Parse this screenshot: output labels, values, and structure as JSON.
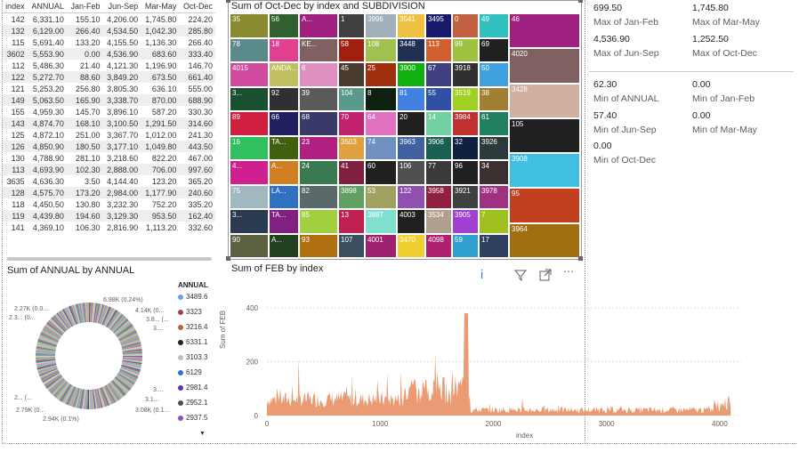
{
  "table": {
    "headers": [
      "index",
      "ANNUAL",
      "Jan-Feb",
      "Jun-Sep",
      "Mar-May",
      "Oct-Dec"
    ],
    "rows": [
      [
        "142",
        "6,331.10",
        "155.10",
        "4,206.00",
        "1,745.80",
        "224.20"
      ],
      [
        "132",
        "6,129.00",
        "266.40",
        "4,534.50",
        "1,042.30",
        "285.80"
      ],
      [
        "115",
        "5,691.40",
        "133.20",
        "4,155.50",
        "1,136.30",
        "266.40"
      ],
      [
        "3602",
        "5,553.90",
        "0.00",
        "4,536.90",
        "683.60",
        "333.40"
      ],
      [
        "112",
        "5,486.30",
        "21.40",
        "4,121.30",
        "1,196.90",
        "146.70"
      ],
      [
        "122",
        "5,272.70",
        "88.60",
        "3,849.20",
        "673.50",
        "661.40"
      ],
      [
        "121",
        "5,253.20",
        "256.80",
        "3,805.30",
        "636.10",
        "555.00"
      ],
      [
        "149",
        "5,063.50",
        "165.90",
        "3,338.70",
        "870.00",
        "688.90"
      ],
      [
        "155",
        "4,959.30",
        "145.70",
        "3,896.10",
        "587.20",
        "330.30"
      ],
      [
        "143",
        "4,874.70",
        "168.10",
        "3,100.50",
        "1,291.50",
        "314.60"
      ],
      [
        "125",
        "4,872.10",
        "251.00",
        "3,367.70",
        "1,012.00",
        "241.30"
      ],
      [
        "126",
        "4,850.90",
        "180.50",
        "3,177.10",
        "1,049.80",
        "443.50"
      ],
      [
        "130",
        "4,788.90",
        "281.10",
        "3,218.60",
        "822.20",
        "467.00"
      ],
      [
        "113",
        "4,693.90",
        "102.30",
        "2,888.00",
        "706.00",
        "997.60"
      ],
      [
        "3635",
        "4,636.30",
        "3.50",
        "4,144.40",
        "123.20",
        "365.20"
      ],
      [
        "128",
        "4,575.70",
        "173.20",
        "2,984.00",
        "1,177.90",
        "240.60"
      ],
      [
        "118",
        "4,450.50",
        "130.80",
        "3,232.30",
        "752.20",
        "335.20"
      ],
      [
        "119",
        "4,439.80",
        "194.60",
        "3,129.30",
        "953.50",
        "162.40"
      ],
      [
        "141",
        "4,369.10",
        "106.30",
        "2,816.90",
        "1,113.20",
        "332.60"
      ]
    ]
  },
  "treemap": {
    "title": "Sum of Oct-Dec by index and SUBDIVISION",
    "cells": [
      [
        "35",
        "#8a8a30"
      ],
      [
        "78",
        "#5b8a8a"
      ],
      [
        "4015",
        "#d04aa0"
      ],
      [
        "3...",
        "#1a5030"
      ],
      [
        "89",
        "#d02040"
      ],
      [
        "16",
        "#30c060"
      ],
      [
        "4...",
        "#d02090"
      ],
      [
        "75",
        "#a0b8c0"
      ],
      [
        "3...",
        "#2a3a50"
      ],
      [
        "90",
        "#5a6040"
      ],
      [
        "56",
        "#306030"
      ],
      [
        "18",
        "#e04090"
      ],
      [
        "ANDA...",
        "#c0c060"
      ],
      [
        "92",
        "#303030"
      ],
      [
        "66",
        "#202060"
      ],
      [
        "TA...",
        "#406010"
      ],
      [
        "A...",
        "#d08020"
      ],
      [
        "LA...",
        "#3070c0"
      ],
      [
        "TA...",
        "#802080"
      ],
      [
        "A...",
        "#204020"
      ],
      [
        "A...",
        "#a02080"
      ],
      [
        "KE...",
        "#806060"
      ],
      [
        "6",
        "#e090c0"
      ],
      [
        "39",
        "#5a5a5a"
      ],
      [
        "68",
        "#3a3a6a"
      ],
      [
        "23",
        "#b02080"
      ],
      [
        "24",
        "#3a7a50"
      ],
      [
        "82",
        "#5a6a6a"
      ],
      [
        "85",
        "#a0d040"
      ],
      [
        "93",
        "#b07010"
      ],
      [
        "1",
        "#404040"
      ],
      [
        "58",
        "#a02010"
      ],
      [
        "45",
        "#4a3a30"
      ],
      [
        "104",
        "#5a9a8a"
      ],
      [
        "70",
        "#c02070"
      ],
      [
        "3503",
        "#e0a040"
      ],
      [
        "41",
        "#802040"
      ],
      [
        "3898",
        "#60a060"
      ],
      [
        "13",
        "#c02050"
      ],
      [
        "107",
        "#3a5060"
      ],
      [
        "3996",
        "#a0b0b8"
      ],
      [
        "108",
        "#a0c050"
      ],
      [
        "25",
        "#a03010"
      ],
      [
        "8",
        "#102010"
      ],
      [
        "64",
        "#e070c0"
      ],
      [
        "74",
        "#7090c0"
      ],
      [
        "60",
        "#202020"
      ],
      [
        "53",
        "#a0a060"
      ],
      [
        "3887",
        "#80e0d0"
      ],
      [
        "4001",
        "#a02070"
      ],
      [
        "3541",
        "#f0c040"
      ],
      [
        "3448",
        "#203050"
      ],
      [
        "3900",
        "#10b010"
      ],
      [
        "81",
        "#4080e0"
      ],
      [
        "20",
        "#202020"
      ],
      [
        "3963",
        "#4060a0"
      ],
      [
        "106",
        "#505050"
      ],
      [
        "122",
        "#9050b0"
      ],
      [
        "4003",
        "#202020"
      ],
      [
        "3470",
        "#f0d030"
      ],
      [
        "3495",
        "#1a1a6a"
      ],
      [
        "113",
        "#d06030"
      ],
      [
        "67",
        "#404080"
      ],
      [
        "55",
        "#3050a0"
      ],
      [
        "14",
        "#70d0a0"
      ],
      [
        "3906",
        "#1a6050"
      ],
      [
        "77",
        "#3a3a3a"
      ],
      [
        "3958",
        "#902040"
      ],
      [
        "3534",
        "#b0a090"
      ],
      [
        "4098",
        "#b02070"
      ],
      [
        "0",
        "#c06040"
      ],
      [
        "99",
        "#a0c040"
      ],
      [
        "3918",
        "#303030"
      ],
      [
        "3519",
        "#a0d020"
      ],
      [
        "3984",
        "#c03030"
      ],
      [
        "32",
        "#102040"
      ],
      [
        "96",
        "#202020"
      ],
      [
        "3921",
        "#404040"
      ],
      [
        "3905",
        "#a040d0"
      ],
      [
        "59",
        "#30a0d0"
      ],
      [
        "49",
        "#30c0c0"
      ],
      [
        "69",
        "#202020"
      ],
      [
        "50",
        "#40a0e0"
      ],
      [
        "38",
        "#a08030"
      ],
      [
        "61",
        "#208060"
      ],
      [
        "3926",
        "#2a3a3a"
      ],
      [
        "34",
        "#3a3030"
      ],
      [
        "3978",
        "#a03080"
      ],
      [
        "7",
        "#a0c020"
      ],
      [
        "17",
        "#304060"
      ],
      [
        "46",
        "#a02080"
      ],
      [
        "4020",
        "#806060"
      ],
      [
        "3428",
        "#d0b0a0"
      ],
      [
        "105",
        "#202020"
      ],
      [
        "3908",
        "#40c0e0"
      ],
      [
        "95",
        "#c04020"
      ],
      [
        "3964",
        "#a07010"
      ]
    ]
  },
  "cards": {
    "values": [
      "699.50",
      "1,745.80",
      "4,536.90",
      "1,252.50",
      "62.30",
      "0.00",
      "57.40",
      "0.00",
      "0.00"
    ],
    "labels": [
      "Max of Jan-Feb",
      "Max of Mar-May",
      "Max of Jun-Sep",
      "Max of Oct-Dec",
      "Min of ANNUAL",
      "Min of Jan-Feb",
      "Min of Jun-Sep",
      "Min of Mar-May",
      "Min of Oct-Dec"
    ]
  },
  "donut": {
    "title": "Sum of ANNUAL by ANNUAL",
    "legend_title": "ANNUAL",
    "legend": [
      [
        "3489.6",
        "#6aa4e0"
      ],
      [
        "3323",
        "#a04050"
      ],
      [
        "3216.4",
        "#c06040"
      ],
      [
        "6331.1",
        "#202020"
      ],
      [
        "3103.3",
        "#c0c0c0"
      ],
      [
        "6129",
        "#3070c0"
      ],
      [
        "2981.4",
        "#6030b0"
      ],
      [
        "2952.1",
        "#505050"
      ],
      [
        "2937.5",
        "#9050b0"
      ]
    ],
    "labels": [
      "6.98K (0.24%)",
      "4.14K (0...",
      "3.8... (...",
      "3....",
      "2.27K (0.0...",
      "2.3... (0...",
      "2... (...",
      "2.79K (0...",
      "2.94K (0.1%)",
      "3....",
      "3.1...",
      "3.08K (0.1..."
    ]
  },
  "linechart": {
    "title": "Sum of FEB by index",
    "ylabel": "Sum of FEB",
    "xlabel": "index",
    "yticks": [
      "400",
      "200",
      "0"
    ],
    "xticks": [
      "0",
      "1000",
      "2000",
      "3000",
      "4000"
    ],
    "color": "#e8895a"
  },
  "icons": {
    "info": "i",
    "filter": "funnel-icon",
    "focus": "focus-mode-icon",
    "more": "more-options-icon"
  }
}
